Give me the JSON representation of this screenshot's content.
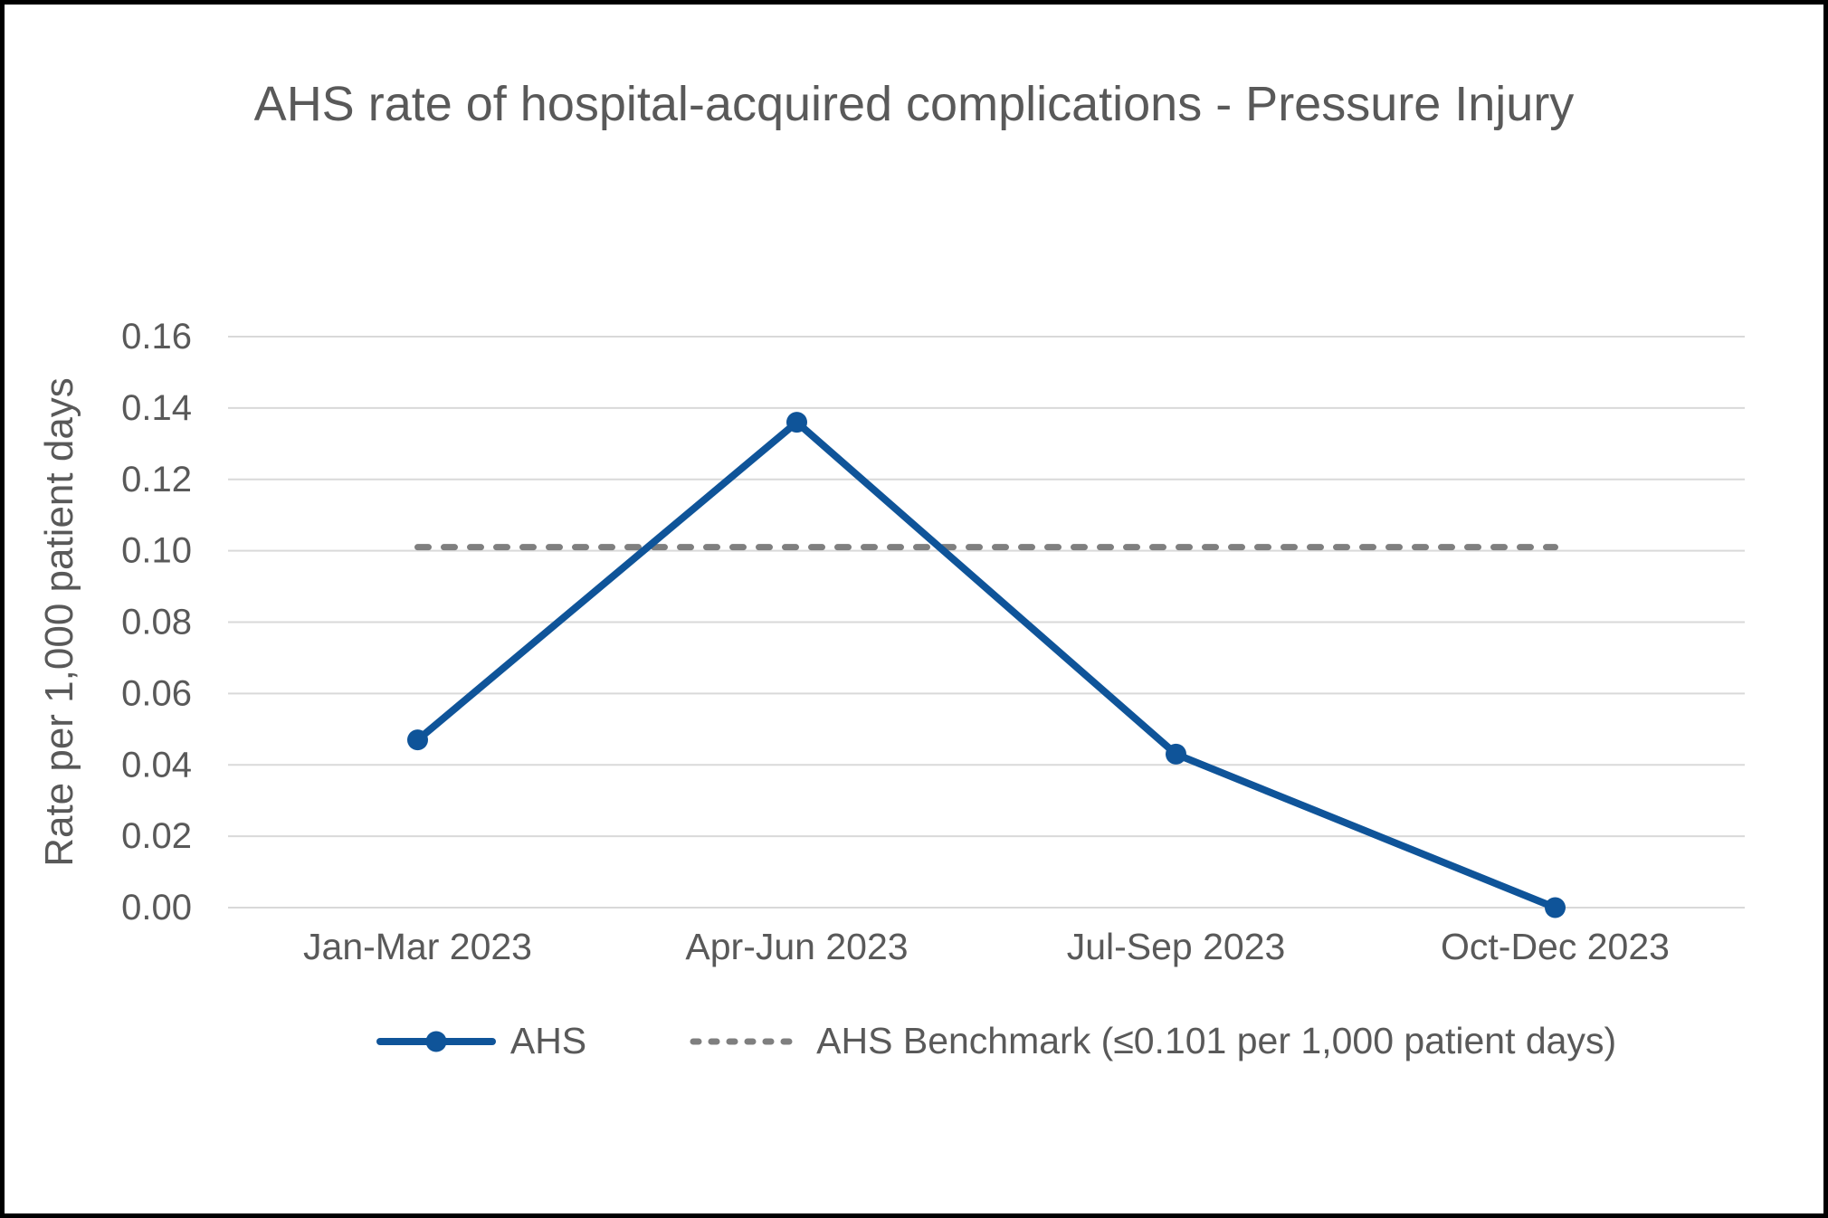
{
  "chart_data": {
    "type": "line",
    "title": "AHS rate of hospital-acquired complications - Pressure Injury",
    "xlabel": "",
    "ylabel": "Rate per 1,000 patient days",
    "categories": [
      "Jan-Mar 2023",
      "Apr-Jun 2023",
      "Jul-Sep 2023",
      "Oct-Dec 2023"
    ],
    "series": [
      {
        "name": "AHS",
        "style": "solid-line-with-circle-markers",
        "values": [
          0.047,
          0.136,
          0.043,
          0.0
        ],
        "color": "#0F5499"
      },
      {
        "name": "AHS Benchmark (≤0.101 per 1,000 patient days)",
        "style": "dashed-line",
        "values": [
          0.101,
          0.101,
          0.101,
          0.101
        ],
        "color": "#7F7F7F"
      }
    ],
    "benchmark_value": 0.101,
    "ylim": [
      0,
      0.16
    ],
    "ytick_labels": [
      "0.00",
      "0.02",
      "0.04",
      "0.06",
      "0.08",
      "0.10",
      "0.12",
      "0.14",
      "0.16"
    ],
    "grid": "horizontal",
    "legend_position": "bottom"
  },
  "colors": {
    "series_blue": "#0F5499",
    "benchmark_gray": "#7F7F7F",
    "gridline_gray": "#D9D9D9",
    "text_gray": "#595959",
    "frame_border": "#000000",
    "background": "#FFFFFF"
  }
}
